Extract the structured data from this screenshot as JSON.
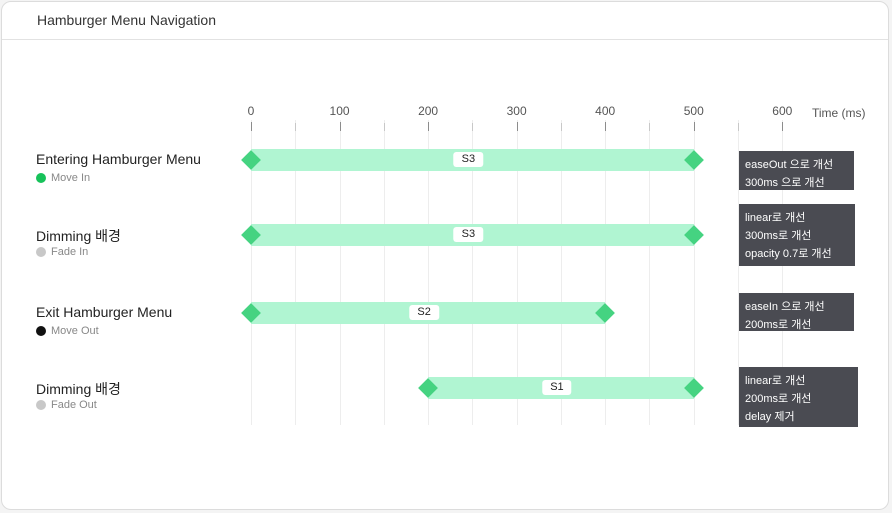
{
  "header": {
    "title": "Hamburger Menu Navigation"
  },
  "axis": {
    "labels": [
      "0",
      "100",
      "200",
      "300",
      "400",
      "500",
      "600"
    ],
    "unit": "Time (ms)"
  },
  "rows": [
    {
      "title": "Entering Hamburger Menu",
      "subtitle": "Move In",
      "dot_color": "#17c25a",
      "start": 0,
      "end": 500,
      "tag": "S3",
      "note": [
        "easeOut 으로 개선",
        "300ms 으로 개선"
      ]
    },
    {
      "title": "Dimming 배경",
      "subtitle": "Fade In",
      "dot_color": "#c8c8c8",
      "start": 0,
      "end": 500,
      "tag": "S3",
      "note": [
        "linear로 개선",
        "300ms로 개선",
        "opacity 0.7로 개선"
      ]
    },
    {
      "title": "Exit Hamburger Menu",
      "subtitle": "Move Out",
      "dot_color": "#111111",
      "start": 0,
      "end": 400,
      "tag": "S2",
      "note": [
        "easeIn 으로 개선",
        "200ms로 개선"
      ]
    },
    {
      "title": "Dimming 배경",
      "subtitle": "Fade Out",
      "dot_color": "#c8c8c8",
      "start": 200,
      "end": 500,
      "tag": "S1",
      "note": [
        "linear로 개선",
        "200ms로 개선",
        "delay 제거"
      ]
    }
  ],
  "colors": {
    "bar": "#b0f5d2",
    "marker": "#45d381",
    "note_bg": "#4a4b52"
  }
}
